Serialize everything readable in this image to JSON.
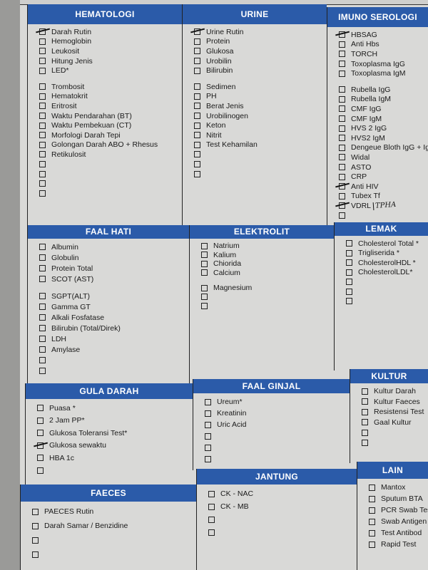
{
  "colors": {
    "header": "#2b5ba9",
    "paper": "#d9d9d7"
  },
  "sections": [
    {
      "id": "hematologi",
      "title": "HEMATOLOGI",
      "groups": [
        [
          {
            "label": "Darah Rutin",
            "checked": true
          },
          {
            "label": "Hemoglobin"
          },
          {
            "label": "Leukosit"
          },
          {
            "label": "Hitung Jenis"
          },
          {
            "label": "LED*"
          }
        ],
        [
          {
            "label": "Trombosit"
          },
          {
            "label": "Hematokrit"
          },
          {
            "label": "Eritrosit"
          },
          {
            "label": "Waktu Pendarahan (BT)"
          },
          {
            "label": "Waktu Pembekuan (CT)"
          },
          {
            "label": "Morfologi Darah Tepi"
          },
          {
            "label": "Golongan Darah ABO + Rhesus"
          },
          {
            "label": "Retikulosit"
          },
          {
            "label": ""
          },
          {
            "label": ""
          },
          {
            "label": ""
          },
          {
            "label": ""
          }
        ]
      ]
    },
    {
      "id": "urine",
      "title": "URINE",
      "groups": [
        [
          {
            "label": "Urine Rutin",
            "checked": true
          },
          {
            "label": "Protein"
          },
          {
            "label": "Glukosa"
          },
          {
            "label": "Urobilin"
          },
          {
            "label": "Bilirubin"
          }
        ],
        [
          {
            "label": "Sedimen"
          },
          {
            "label": "PH"
          },
          {
            "label": "Berat Jenis"
          },
          {
            "label": "Urobilinogen"
          },
          {
            "label": "Keton"
          },
          {
            "label": "Nitrit"
          },
          {
            "label": "Test Kehamilan"
          },
          {
            "label": ""
          },
          {
            "label": ""
          },
          {
            "label": ""
          }
        ]
      ]
    },
    {
      "id": "imuno",
      "title": "IMUNO SEROLOGI",
      "groups": [
        [
          {
            "label": "HBSAG",
            "checked": true
          },
          {
            "label": "Anti Hbs"
          },
          {
            "label": "TORCH"
          },
          {
            "label": "Toxoplasma IgG"
          },
          {
            "label": "Toxoplasma IgM"
          }
        ],
        [
          {
            "label": "Rubella IgG"
          },
          {
            "label": "Rubella IgM"
          },
          {
            "label": "CMF IgG"
          },
          {
            "label": "CMF IgM"
          },
          {
            "label": "HVS 2 IgG"
          },
          {
            "label": "HVS2 IgM"
          },
          {
            "label": "Dengeue Bloth IgG + IgM"
          },
          {
            "label": "Widal"
          },
          {
            "label": "ASTO"
          },
          {
            "label": "CRP"
          },
          {
            "label": "Anti HIV",
            "checked": true
          },
          {
            "label": "Tubex Tf"
          },
          {
            "label": "VDRL",
            "checked": true,
            "note": "TPHA"
          },
          {
            "label": ""
          }
        ]
      ]
    },
    {
      "id": "faalhati",
      "title": "FAAL HATI",
      "groups": [
        [
          {
            "label": "Albumin"
          },
          {
            "label": "Globulin"
          },
          {
            "label": "Protein Total"
          },
          {
            "label": "SCOT (AST)"
          }
        ],
        [
          {
            "label": "SGPT(ALT)"
          },
          {
            "label": "Gamma GT"
          },
          {
            "label": "Alkali Fosfatase"
          },
          {
            "label": "Bilirubin (Total/Direk)"
          },
          {
            "label": "LDH"
          },
          {
            "label": "Amylase"
          },
          {
            "label": ""
          },
          {
            "label": ""
          }
        ]
      ]
    },
    {
      "id": "elektrolit",
      "title": "ELEKTROLIT",
      "groups": [
        [
          {
            "label": "Natrium"
          },
          {
            "label": "Kalium"
          },
          {
            "label": "Chiorida"
          },
          {
            "label": "Calcium"
          }
        ],
        [
          {
            "label": "Magnesium"
          },
          {
            "label": ""
          },
          {
            "label": ""
          }
        ]
      ]
    },
    {
      "id": "lemak",
      "title": "LEMAK",
      "groups": [
        [
          {
            "label": "Cholesterol Total *"
          },
          {
            "label": "Trigliserida *"
          },
          {
            "label": "CholesterolHDL *"
          },
          {
            "label": "CholesterolLDL*"
          },
          {
            "label": ""
          },
          {
            "label": ""
          },
          {
            "label": ""
          }
        ]
      ]
    },
    {
      "id": "kultur",
      "title": "KULTUR",
      "groups": [
        [
          {
            "label": "Kultur Darah"
          },
          {
            "label": "Kultur Faeces"
          },
          {
            "label": "Resistensi Test"
          },
          {
            "label": "Gaal Kultur"
          },
          {
            "label": ""
          },
          {
            "label": ""
          }
        ]
      ]
    },
    {
      "id": "guladarah",
      "title": "GULA DARAH",
      "groups": [
        [
          {
            "label": "Puasa *"
          },
          {
            "label": "2 Jam PP*"
          },
          {
            "label": "Glukosa Toleransi Test*"
          },
          {
            "label": "Glukosa sewaktu",
            "checked": true
          },
          {
            "label": "HBA 1c"
          },
          {
            "label": ""
          }
        ]
      ]
    },
    {
      "id": "faalginjal",
      "title": "FAAL GINJAL",
      "groups": [
        [
          {
            "label": "Ureum*"
          },
          {
            "label": "Kreatinin"
          },
          {
            "label": "Uric Acid"
          },
          {
            "label": ""
          },
          {
            "label": ""
          },
          {
            "label": ""
          }
        ]
      ]
    },
    {
      "id": "faeces",
      "title": "FAECES",
      "groups": [
        [
          {
            "label": "PAECES Rutin"
          },
          {
            "label": "Darah Samar / Benzidine"
          },
          {
            "label": ""
          },
          {
            "label": ""
          }
        ]
      ]
    },
    {
      "id": "jantung",
      "title": "JANTUNG",
      "groups": [
        [
          {
            "label": "CK - NAC"
          },
          {
            "label": "CK - MB"
          },
          {
            "label": ""
          },
          {
            "label": ""
          }
        ]
      ]
    },
    {
      "id": "lain",
      "title": "LAIN",
      "groups": [
        [
          {
            "label": "Mantox"
          },
          {
            "label": "Sputum BTA"
          },
          {
            "label": "PCR Swab Tes"
          },
          {
            "label": "Swab Antigen"
          },
          {
            "label": "Test Antibod"
          },
          {
            "label": "Rapid Test"
          }
        ]
      ]
    }
  ]
}
